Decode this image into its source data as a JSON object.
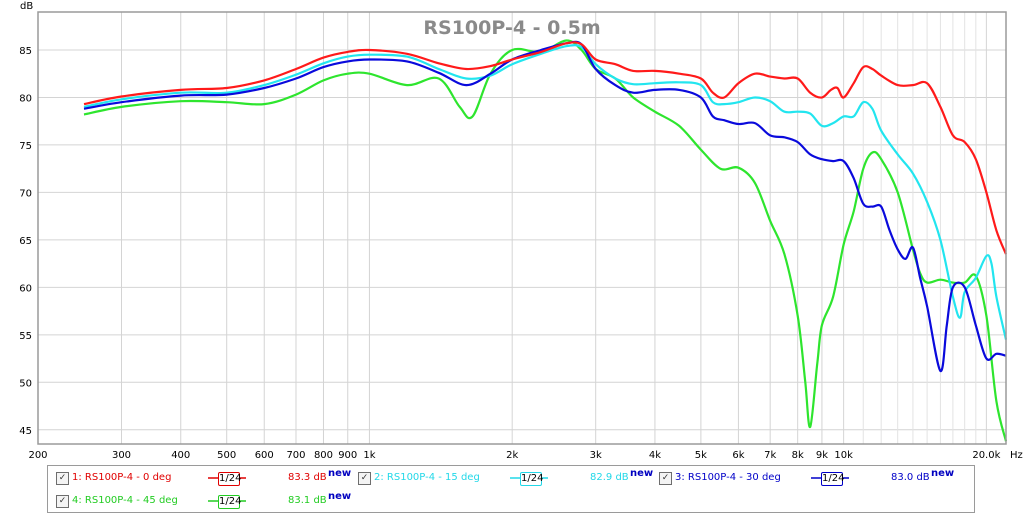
{
  "chart_data": {
    "type": "line",
    "title": "RS100P-4 - 0.5m",
    "ylabel": "dB",
    "xunit": "Hz",
    "xscale": "log",
    "xlim": [
      200,
      22000
    ],
    "ylim": [
      43.5,
      89
    ],
    "grid": true,
    "y_ticks": [
      45,
      50,
      55,
      60,
      65,
      70,
      75,
      80,
      85
    ],
    "x_ticks": [
      {
        "v": 200,
        "label": "200"
      },
      {
        "v": 300,
        "label": "300"
      },
      {
        "v": 400,
        "label": "400"
      },
      {
        "v": 500,
        "label": "500"
      },
      {
        "v": 600,
        "label": "600"
      },
      {
        "v": 700,
        "label": "700"
      },
      {
        "v": 800,
        "label": "800"
      },
      {
        "v": 900,
        "label": "900"
      },
      {
        "v": 1000,
        "label": "1k"
      },
      {
        "v": 2000,
        "label": "2k"
      },
      {
        "v": 3000,
        "label": "3k"
      },
      {
        "v": 4000,
        "label": "4k"
      },
      {
        "v": 5000,
        "label": "5k"
      },
      {
        "v": 6000,
        "label": "6k"
      },
      {
        "v": 7000,
        "label": "7k"
      },
      {
        "v": 8000,
        "label": "8k"
      },
      {
        "v": 9000,
        "label": "9k"
      },
      {
        "v": 10000,
        "label": "10k"
      },
      {
        "v": 20000,
        "label": "20.0k"
      }
    ],
    "x_minor": [
      11000,
      12000,
      13000,
      14000,
      15000,
      16000,
      17000,
      18000,
      19000
    ],
    "series": [
      {
        "name": "1: RS100P-4 - 0 deg",
        "color": "#ff1a1a",
        "smoothing": "1/24",
        "value_label": "83.3 dB",
        "points": [
          [
            250,
            79.3
          ],
          [
            300,
            80.1
          ],
          [
            400,
            80.8
          ],
          [
            500,
            81.0
          ],
          [
            600,
            81.8
          ],
          [
            700,
            83.0
          ],
          [
            800,
            84.2
          ],
          [
            900,
            84.8
          ],
          [
            1000,
            85.0
          ],
          [
            1200,
            84.6
          ],
          [
            1400,
            83.6
          ],
          [
            1600,
            83.0
          ],
          [
            1800,
            83.3
          ],
          [
            2000,
            84.0
          ],
          [
            2300,
            84.8
          ],
          [
            2600,
            85.7
          ],
          [
            2800,
            85.6
          ],
          [
            3000,
            84.0
          ],
          [
            3300,
            83.5
          ],
          [
            3600,
            82.8
          ],
          [
            4000,
            82.8
          ],
          [
            4500,
            82.5
          ],
          [
            5000,
            82.0
          ],
          [
            5300,
            80.5
          ],
          [
            5600,
            80.0
          ],
          [
            6000,
            81.5
          ],
          [
            6500,
            82.5
          ],
          [
            7000,
            82.2
          ],
          [
            7500,
            82.0
          ],
          [
            8000,
            82.0
          ],
          [
            8500,
            80.5
          ],
          [
            9000,
            80.0
          ],
          [
            9400,
            80.8
          ],
          [
            9700,
            81.0
          ],
          [
            10000,
            80.0
          ],
          [
            10500,
            81.5
          ],
          [
            11000,
            83.2
          ],
          [
            11500,
            83.0
          ],
          [
            12000,
            82.3
          ],
          [
            13000,
            81.3
          ],
          [
            14000,
            81.3
          ],
          [
            15000,
            81.5
          ],
          [
            16000,
            79.0
          ],
          [
            17000,
            76.0
          ],
          [
            18000,
            75.3
          ],
          [
            19000,
            73.5
          ],
          [
            20000,
            70.0
          ],
          [
            21000,
            66.0
          ],
          [
            22000,
            63.5
          ]
        ]
      },
      {
        "name": "2: RS100P-4 - 15 deg",
        "color": "#22e5ef",
        "smoothing": "1/24",
        "value_label": "82.9 dB",
        "points": [
          [
            250,
            79.0
          ],
          [
            300,
            79.8
          ],
          [
            400,
            80.5
          ],
          [
            500,
            80.5
          ],
          [
            600,
            81.3
          ],
          [
            700,
            82.4
          ],
          [
            800,
            83.6
          ],
          [
            900,
            84.3
          ],
          [
            1000,
            84.5
          ],
          [
            1200,
            84.3
          ],
          [
            1400,
            83.0
          ],
          [
            1600,
            82.0
          ],
          [
            1800,
            82.3
          ],
          [
            2000,
            83.5
          ],
          [
            2300,
            84.6
          ],
          [
            2600,
            85.4
          ],
          [
            2800,
            85.3
          ],
          [
            3000,
            83.5
          ],
          [
            3300,
            82.0
          ],
          [
            3600,
            81.4
          ],
          [
            4000,
            81.5
          ],
          [
            4500,
            81.6
          ],
          [
            5000,
            81.3
          ],
          [
            5300,
            79.5
          ],
          [
            5600,
            79.3
          ],
          [
            6000,
            79.5
          ],
          [
            6500,
            80.0
          ],
          [
            7000,
            79.6
          ],
          [
            7500,
            78.5
          ],
          [
            8000,
            78.5
          ],
          [
            8500,
            78.3
          ],
          [
            9000,
            77.0
          ],
          [
            9500,
            77.3
          ],
          [
            10000,
            78.0
          ],
          [
            10500,
            78.0
          ],
          [
            11000,
            79.5
          ],
          [
            11500,
            78.8
          ],
          [
            12000,
            76.5
          ],
          [
            13000,
            74.0
          ],
          [
            14000,
            72.0
          ],
          [
            15000,
            69.0
          ],
          [
            16000,
            65.0
          ],
          [
            17000,
            59.0
          ],
          [
            17600,
            56.8
          ],
          [
            18000,
            59.5
          ],
          [
            19000,
            61.0
          ],
          [
            20000,
            63.3
          ],
          [
            20500,
            62.5
          ],
          [
            21000,
            59.0
          ],
          [
            22000,
            54.5
          ]
        ]
      },
      {
        "name": "3: RS100P-4 - 30 deg",
        "color": "#0a0adc",
        "smoothing": "1/24",
        "value_label": "83.0 dB",
        "points": [
          [
            250,
            78.8
          ],
          [
            300,
            79.5
          ],
          [
            400,
            80.2
          ],
          [
            500,
            80.3
          ],
          [
            600,
            81.0
          ],
          [
            700,
            82.0
          ],
          [
            800,
            83.2
          ],
          [
            900,
            83.8
          ],
          [
            1000,
            84.0
          ],
          [
            1200,
            83.8
          ],
          [
            1400,
            82.6
          ],
          [
            1600,
            81.3
          ],
          [
            1800,
            82.5
          ],
          [
            2000,
            84.0
          ],
          [
            2300,
            85.0
          ],
          [
            2600,
            85.7
          ],
          [
            2800,
            85.6
          ],
          [
            3000,
            83.0
          ],
          [
            3300,
            81.3
          ],
          [
            3600,
            80.5
          ],
          [
            4000,
            80.8
          ],
          [
            4500,
            80.8
          ],
          [
            5000,
            80.0
          ],
          [
            5300,
            78.0
          ],
          [
            5600,
            77.6
          ],
          [
            6000,
            77.2
          ],
          [
            6500,
            77.3
          ],
          [
            7000,
            76.0
          ],
          [
            7500,
            75.8
          ],
          [
            8000,
            75.3
          ],
          [
            8500,
            74.0
          ],
          [
            9000,
            73.5
          ],
          [
            9500,
            73.3
          ],
          [
            10000,
            73.3
          ],
          [
            10500,
            71.5
          ],
          [
            11000,
            68.8
          ],
          [
            11500,
            68.5
          ],
          [
            12000,
            68.5
          ],
          [
            12500,
            66.0
          ],
          [
            13000,
            64.0
          ],
          [
            13500,
            63.0
          ],
          [
            14000,
            64.2
          ],
          [
            14500,
            61.0
          ],
          [
            15000,
            58.0
          ],
          [
            16000,
            51.2
          ],
          [
            16500,
            56.0
          ],
          [
            17000,
            60.0
          ],
          [
            18000,
            60.0
          ],
          [
            19000,
            56.0
          ],
          [
            20000,
            52.5
          ],
          [
            21000,
            53.0
          ],
          [
            22000,
            52.8
          ]
        ]
      },
      {
        "name": "4: RS100P-4 - 45 deg",
        "color": "#2ee52e",
        "smoothing": "1/24",
        "value_label": "83.1 dB",
        "points": [
          [
            250,
            78.2
          ],
          [
            300,
            79.0
          ],
          [
            400,
            79.6
          ],
          [
            500,
            79.5
          ],
          [
            600,
            79.3
          ],
          [
            700,
            80.3
          ],
          [
            800,
            81.8
          ],
          [
            900,
            82.5
          ],
          [
            1000,
            82.5
          ],
          [
            1200,
            81.3
          ],
          [
            1400,
            82.0
          ],
          [
            1550,
            79.0
          ],
          [
            1650,
            78.0
          ],
          [
            1800,
            82.5
          ],
          [
            2000,
            85.0
          ],
          [
            2300,
            84.8
          ],
          [
            2600,
            86.0
          ],
          [
            2800,
            85.0
          ],
          [
            3000,
            83.0
          ],
          [
            3300,
            82.0
          ],
          [
            3600,
            80.0
          ],
          [
            4000,
            78.5
          ],
          [
            4500,
            77.0
          ],
          [
            5000,
            74.5
          ],
          [
            5500,
            72.5
          ],
          [
            6000,
            72.6
          ],
          [
            6500,
            71.0
          ],
          [
            7000,
            67.0
          ],
          [
            7500,
            63.5
          ],
          [
            8000,
            57.0
          ],
          [
            8300,
            50.0
          ],
          [
            8500,
            45.3
          ],
          [
            8800,
            52.0
          ],
          [
            9000,
            56.0
          ],
          [
            9500,
            59.0
          ],
          [
            10000,
            64.5
          ],
          [
            10500,
            68.0
          ],
          [
            11000,
            72.5
          ],
          [
            11500,
            74.2
          ],
          [
            12000,
            73.5
          ],
          [
            13000,
            70.0
          ],
          [
            14000,
            64.0
          ],
          [
            14500,
            61.5
          ],
          [
            15000,
            60.5
          ],
          [
            16000,
            60.8
          ],
          [
            17000,
            60.5
          ],
          [
            18000,
            60.5
          ],
          [
            19000,
            61.2
          ],
          [
            20000,
            57.0
          ],
          [
            21000,
            48.0
          ],
          [
            22000,
            43.8
          ]
        ]
      }
    ]
  },
  "legend": {
    "items": [
      {
        "label": "1: RS100P-4 - 0 deg",
        "color": "#e00000",
        "smoothing": "1/24",
        "value": "83.3 dB",
        "new_label": "new",
        "checked": "✓"
      },
      {
        "label": "2: RS100P-4 - 15 deg",
        "color": "#22d8e8",
        "smoothing": "1/24",
        "value": "82.9 dB",
        "new_label": "new",
        "checked": "✓"
      },
      {
        "label": "3: RS100P-4 - 30 deg",
        "color": "#0000c8",
        "smoothing": "1/24",
        "value": "83.0 dB",
        "new_label": "new",
        "checked": "✓"
      },
      {
        "label": "4: RS100P-4 - 45 deg",
        "color": "#22cc22",
        "smoothing": "1/24",
        "value": "83.1 dB",
        "new_label": "new",
        "checked": "✓"
      }
    ]
  }
}
